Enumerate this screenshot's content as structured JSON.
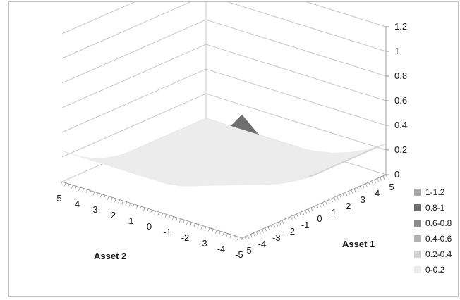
{
  "chart_data": {
    "type": "surface",
    "title": "",
    "xlabel": "Asset 1",
    "ylabel": "Asset 2",
    "zlabel": "",
    "x": [
      -5,
      -4,
      -3,
      -2,
      -1,
      0,
      1,
      2,
      3,
      4,
      5
    ],
    "y": [
      -5,
      -4,
      -3,
      -2,
      -1,
      0,
      1,
      2,
      3,
      4,
      5
    ],
    "x_tick_labels": [
      "-5",
      "-4",
      "-3",
      "-2",
      "-1",
      "0",
      "1",
      "2",
      "3",
      "4",
      "5"
    ],
    "y_tick_labels": [
      "-5",
      "-4",
      "-3",
      "-2",
      "-1",
      "0",
      "1",
      "2",
      "3",
      "4",
      "5"
    ],
    "zlim": [
      0,
      1.2
    ],
    "z_ticks": [
      0,
      0.2,
      0.4,
      0.6,
      0.8,
      1,
      1.2
    ],
    "z_tick_labels": [
      "0",
      "0.2",
      "0.4",
      "0.6",
      "0.8",
      "1",
      "1.2"
    ],
    "z_values": [
      [
        1.0,
        0.81,
        0.64,
        0.49,
        0.36,
        0.25,
        0.25,
        0.25,
        0.25,
        0.25,
        0.25
      ],
      [
        0.81,
        0.64,
        0.49,
        0.36,
        0.25,
        0.16,
        0.16,
        0.16,
        0.16,
        0.16,
        0.16
      ],
      [
        0.64,
        0.49,
        0.36,
        0.25,
        0.16,
        0.09,
        0.09,
        0.09,
        0.09,
        0.09,
        0.09
      ],
      [
        0.49,
        0.36,
        0.25,
        0.16,
        0.09,
        0.04,
        0.04,
        0.04,
        0.04,
        0.04,
        0.04
      ],
      [
        0.36,
        0.25,
        0.16,
        0.09,
        0.04,
        0.01,
        0.01,
        0.01,
        0.01,
        0.01,
        0.01
      ],
      [
        0.25,
        0.16,
        0.09,
        0.04,
        0.01,
        0.0,
        0.0,
        0.0,
        0.0,
        0.0,
        0.0
      ],
      [
        0.25,
        0.16,
        0.09,
        0.04,
        0.01,
        0.0,
        0.0,
        0.0,
        0.0,
        0.0,
        0.0
      ],
      [
        0.25,
        0.16,
        0.09,
        0.04,
        0.01,
        0.0,
        0.0,
        0.0,
        0.0,
        0.0,
        0.0
      ],
      [
        0.25,
        0.16,
        0.09,
        0.04,
        0.01,
        0.0,
        0.0,
        0.0,
        0.0,
        0.0,
        0.0
      ],
      [
        0.25,
        0.16,
        0.09,
        0.04,
        0.01,
        0.0,
        0.0,
        0.0,
        0.0,
        0.0,
        0.0
      ],
      [
        0.25,
        0.16,
        0.09,
        0.04,
        0.01,
        0.0,
        0.0,
        0.0,
        0.0,
        0.0,
        0.0
      ]
    ],
    "gridlines": true,
    "legend_position": "right",
    "legend": [
      {
        "label": "1-1.2",
        "min": 1.0,
        "max": 1.2,
        "color": "#a9a9a9"
      },
      {
        "label": "0.8-1",
        "min": 0.8,
        "max": 1.0,
        "color": "#6e6e6e"
      },
      {
        "label": "0.6-0.8",
        "min": 0.6,
        "max": 0.8,
        "color": "#8c8c8c"
      },
      {
        "label": "0.4-0.6",
        "min": 0.4,
        "max": 0.6,
        "color": "#b1b1b1"
      },
      {
        "label": "0.2-0.4",
        "min": 0.2,
        "max": 0.4,
        "color": "#d3d3d3"
      },
      {
        "label": "0-0.2",
        "min": 0.0,
        "max": 0.2,
        "color": "#ececec"
      }
    ]
  }
}
